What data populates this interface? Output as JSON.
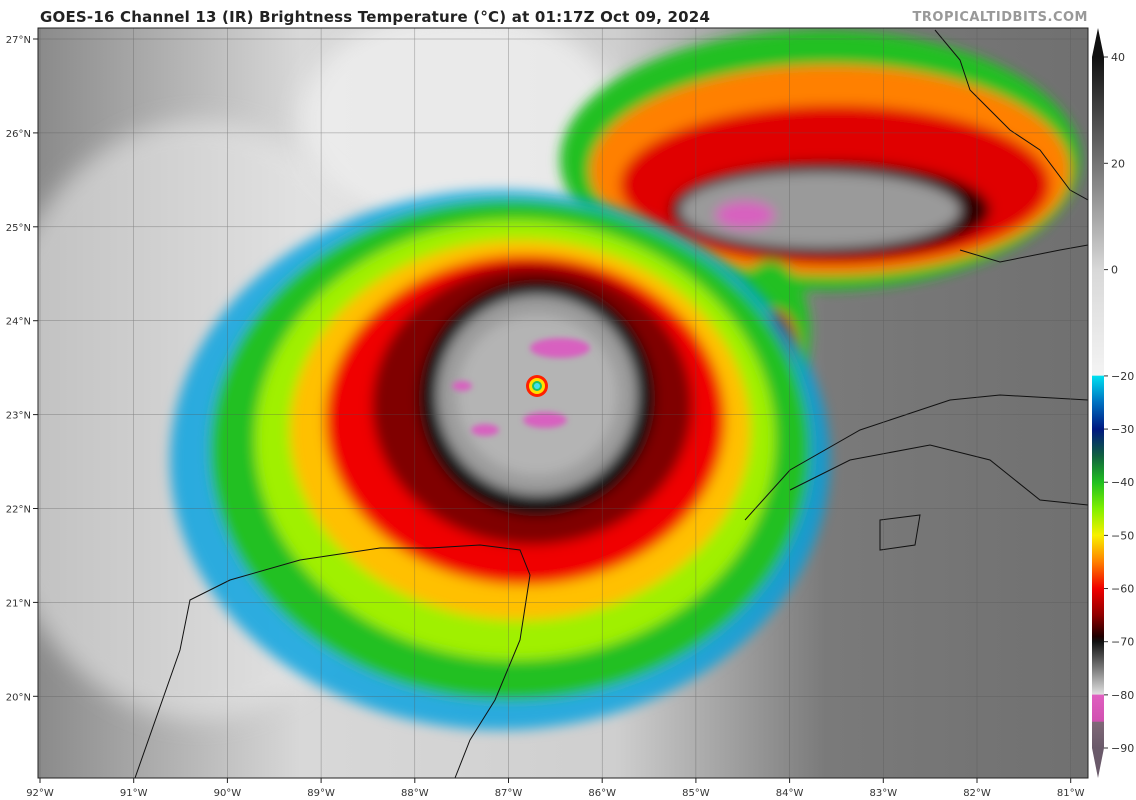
{
  "header": {
    "title": "GOES-16 Channel 13 (IR) Brightness Temperature (°C) at 01:17Z Oct 09, 2024",
    "credit": "TROPICALTIDBITS.COM"
  },
  "map": {
    "lon_labels": [
      "92°W",
      "91°W",
      "90°W",
      "89°W",
      "88°W",
      "87°W",
      "86°W",
      "85°W",
      "84°W",
      "83°W",
      "82°W",
      "81°W"
    ],
    "lat_labels": [
      "27°N",
      "26°N",
      "25°N",
      "24°N",
      "23°N",
      "22°N",
      "21°N",
      "20°N"
    ],
    "lon_range": [
      -92,
      -81
    ],
    "lat_range": [
      19.2,
      27.1
    ],
    "storm_center": {
      "lon": -86.7,
      "lat": 23.3
    }
  },
  "colorbar": {
    "ticks": [
      "40",
      "20",
      "0",
      "−20",
      "−30",
      "−40",
      "−50",
      "−60",
      "−70",
      "−80",
      "−90"
    ],
    "tick_values": [
      40,
      20,
      0,
      -20,
      -30,
      -40,
      -50,
      -60,
      -70,
      -80,
      -90
    ],
    "range": [
      -90,
      40
    ],
    "stops": [
      {
        "t": 40,
        "color": "#111111"
      },
      {
        "t": 0,
        "color": "#d8d8d8"
      },
      {
        "t": -19.9,
        "color": "#f4f4f4"
      },
      {
        "t": -20,
        "color": "#00e0f0"
      },
      {
        "t": -25,
        "color": "#0070c0"
      },
      {
        "t": -30,
        "color": "#001880"
      },
      {
        "t": -35,
        "color": "#106040"
      },
      {
        "t": -40,
        "color": "#20c020"
      },
      {
        "t": -45,
        "color": "#80f000"
      },
      {
        "t": -50,
        "color": "#f8f000"
      },
      {
        "t": -55,
        "color": "#ff8000"
      },
      {
        "t": -60,
        "color": "#f00000"
      },
      {
        "t": -65,
        "color": "#900000"
      },
      {
        "t": -69,
        "color": "#200000"
      },
      {
        "t": -70,
        "color": "#111111"
      },
      {
        "t": -79.9,
        "color": "#e0e0e0"
      },
      {
        "t": -80,
        "color": "#e060c0"
      },
      {
        "t": -85,
        "color": "#d050b0"
      },
      {
        "t": -85.1,
        "color": "#806878"
      },
      {
        "t": -90,
        "color": "#6a5a6a"
      }
    ]
  }
}
